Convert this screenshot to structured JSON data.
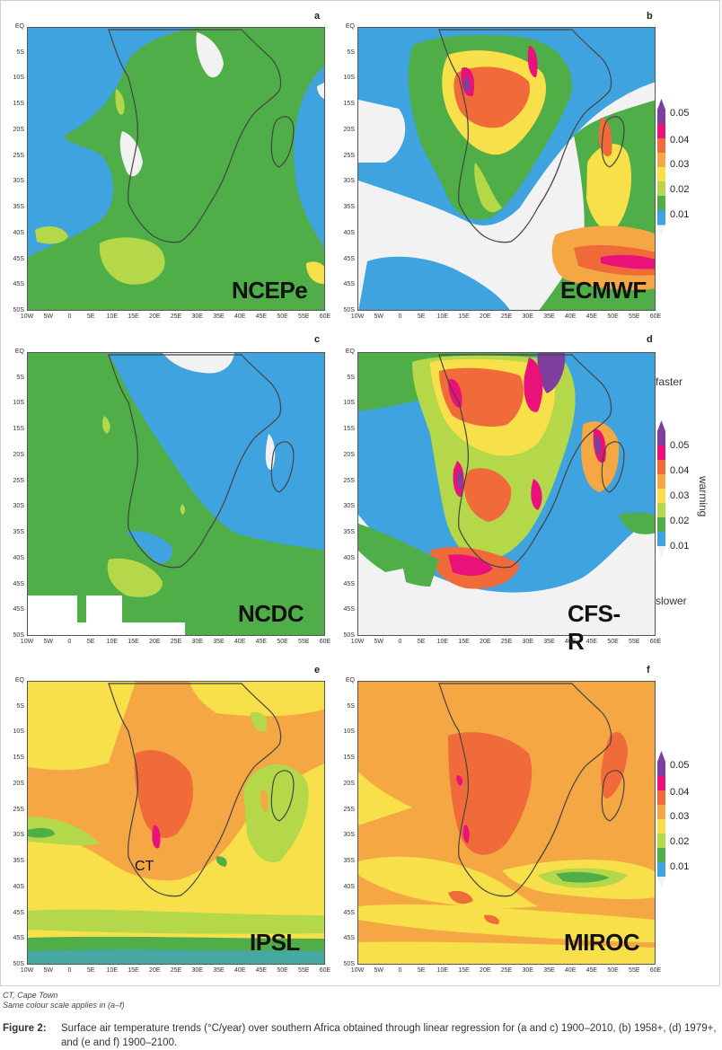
{
  "panels": [
    {
      "letter": "a",
      "model": "NCEPe"
    },
    {
      "letter": "b",
      "model": "ECMWF"
    },
    {
      "letter": "c",
      "model": "NCDC"
    },
    {
      "letter": "d",
      "model": "CFS-R"
    },
    {
      "letter": "e",
      "model": "IPSL"
    },
    {
      "letter": "f",
      "model": "MIROC"
    }
  ],
  "latitude_labels": [
    "EQ",
    "5S",
    "10S",
    "15S",
    "20S",
    "25S",
    "30S",
    "35S",
    "40S",
    "45S",
    "45S",
    "50S"
  ],
  "longitude_labels": [
    "10W",
    "5W",
    "0",
    "5E",
    "10E",
    "15E",
    "20E",
    "25E",
    "30E",
    "35E",
    "40E",
    "45E",
    "50E",
    "55E",
    "60E"
  ],
  "legend": {
    "levels": [
      "0.05",
      "0.04",
      "0.03",
      "0.02",
      "0.01"
    ],
    "colors": [
      "#7f3f9c",
      "#e8127a",
      "#f06a3a",
      "#f4a742",
      "#f7e04a",
      "#b5d84a",
      "#4fae48",
      "#3fa3df",
      "#f2f2f2"
    ]
  },
  "annotations": {
    "faster": "faster",
    "slower": "slower",
    "warming": "warming",
    "cape_town": "CT"
  },
  "notes": {
    "line1": "CT, Cape Town",
    "line2": "Same colour scale applies in (a–f)"
  },
  "caption": {
    "label": "Figure 2:",
    "text": "Surface air temperature trends (°C/year) over southern Africa obtained through linear regression for (a and c) 1900–2010, (b) 1958+, (d) 1979+, and (e and f) 1900–2100."
  }
}
